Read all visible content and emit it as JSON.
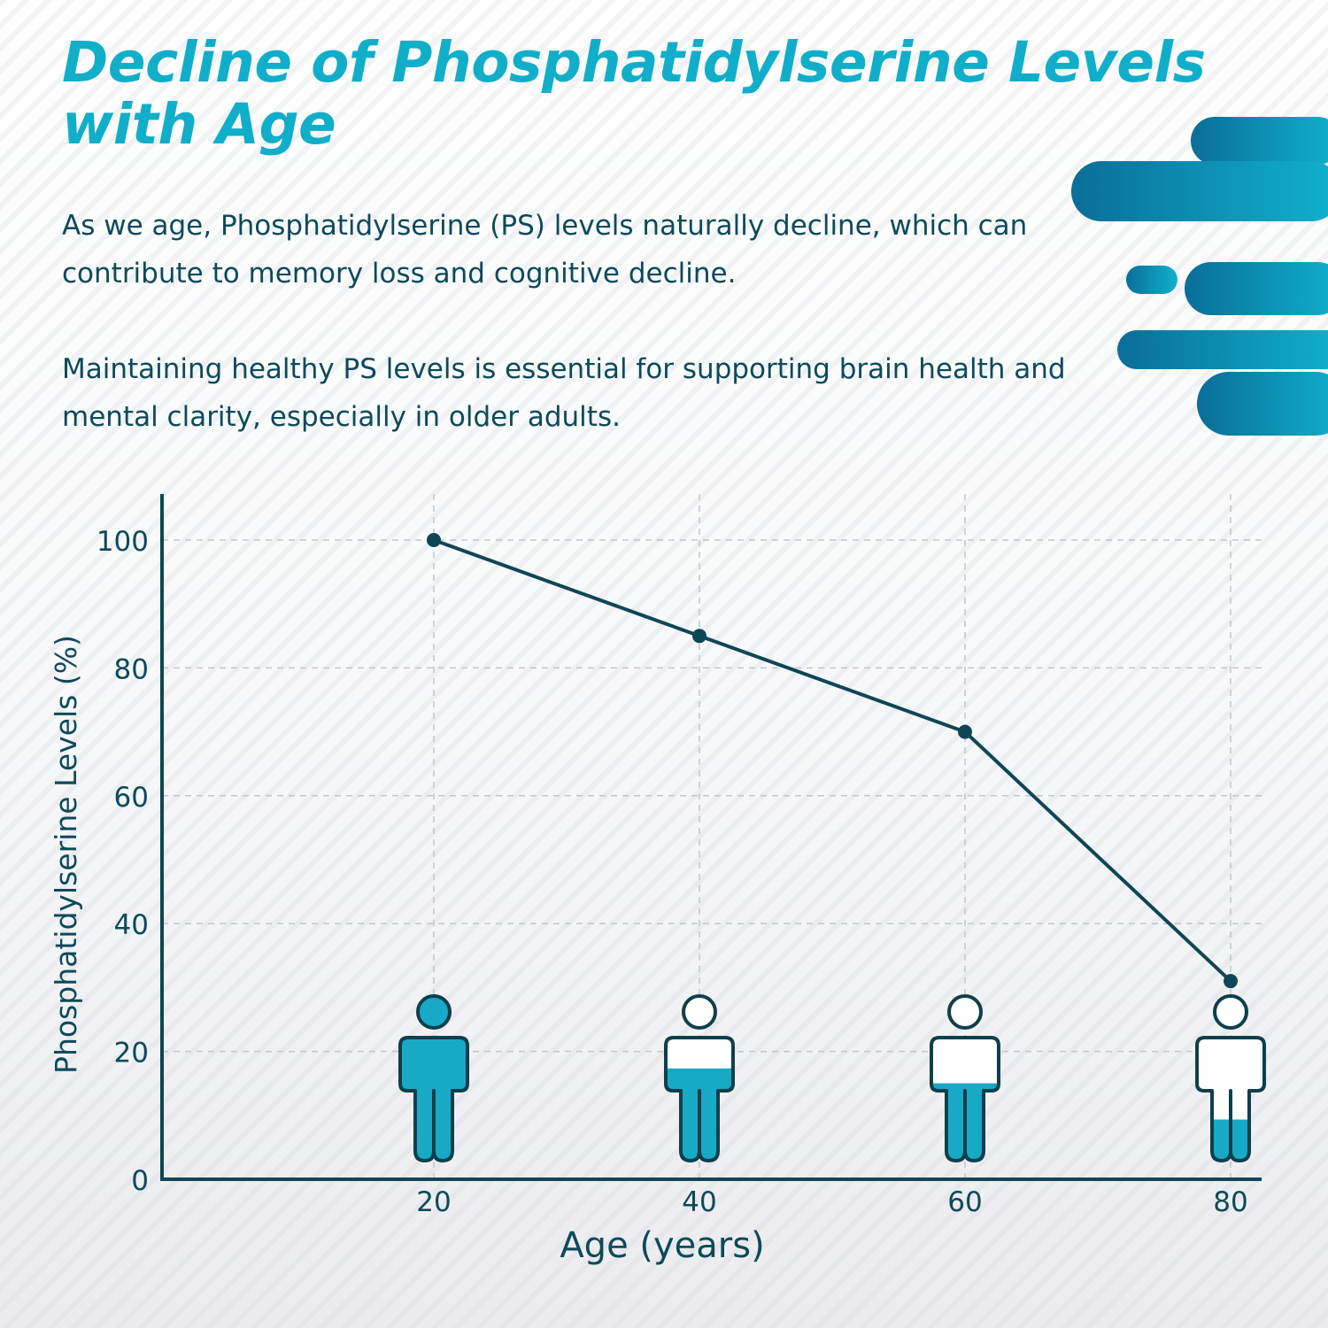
{
  "header": {
    "title": "Decline of Phosphatidylserine Levels with Age",
    "paragraph1": "As we age, Phosphatidylserine (PS) levels naturally decline, which can contribute to memory loss and cognitive decline.",
    "paragraph2": "Maintaining healthy PS levels is essential for supporting brain health and mental clarity, especially in older adults."
  },
  "colors": {
    "accent": "#11aec9",
    "dark": "#0d4a5a",
    "figure_fill": "#18a9c6",
    "line": "#0e4656"
  },
  "chart_data": {
    "type": "line",
    "title": "",
    "xlabel": "Age (years)",
    "ylabel": "Phosphatidylserine Levels (%)",
    "x": [
      20,
      40,
      60,
      80
    ],
    "values": [
      100,
      85,
      70,
      31
    ],
    "xticks": [
      "20",
      "40",
      "60",
      "80"
    ],
    "yticks": [
      "0",
      "20",
      "40",
      "60",
      "80",
      "100"
    ],
    "ylim": [
      0,
      105
    ],
    "grid": true,
    "person_icon_fill_fraction": [
      1.0,
      0.56,
      0.47,
      0.25
    ]
  }
}
